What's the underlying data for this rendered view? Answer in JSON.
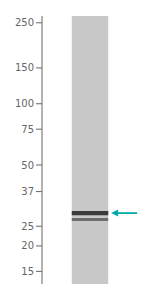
{
  "chart_data": {
    "type": "band",
    "values": [
      29,
      27
    ],
    "thickness": [
      1.4,
      0.9
    ],
    "arrow": 29,
    "color": "#00aaaa",
    "ylim": [
      13,
      270
    ],
    "yticks": [
      250,
      150,
      100,
      75,
      50,
      37,
      25,
      20,
      15
    ],
    "log": "y",
    "tick_labels": "y",
    "grid": false
  }
}
